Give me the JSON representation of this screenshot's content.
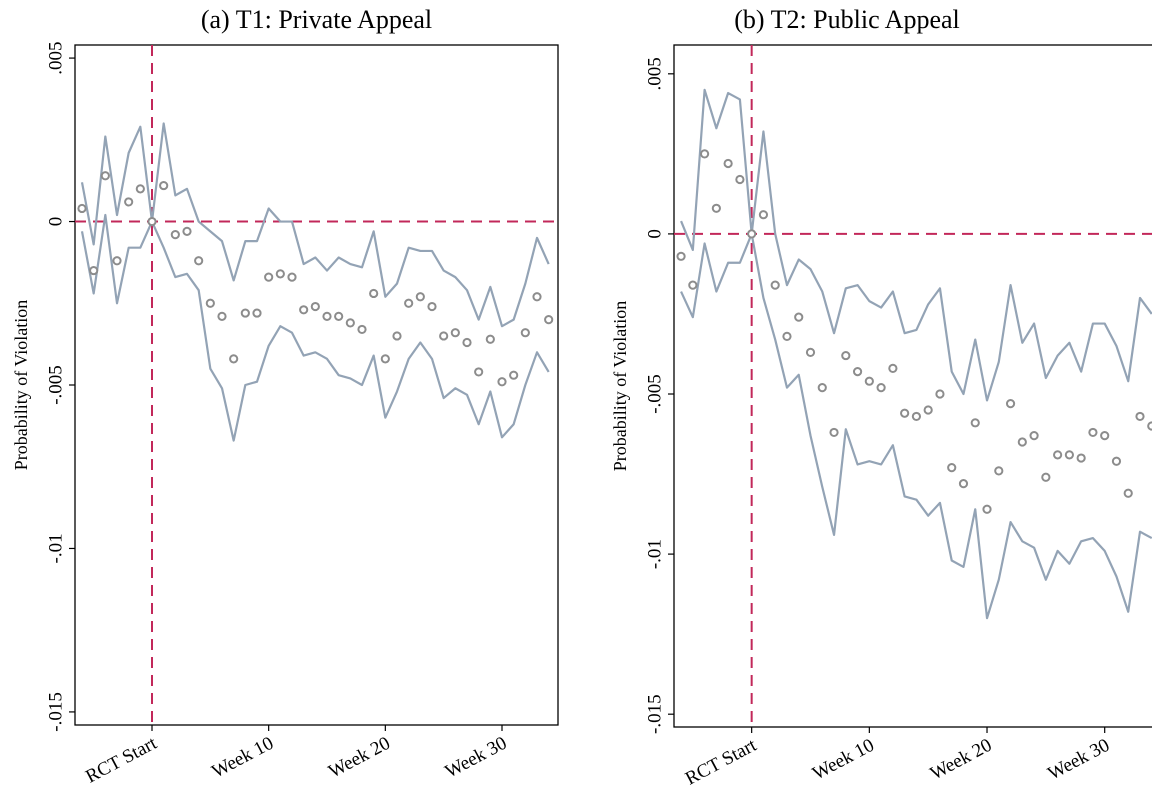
{
  "chart_data": [
    {
      "type": "scatter",
      "title": "(a) T1: Private Appeal",
      "ylabel": "Probability of Violation",
      "x": [
        -6,
        -5,
        -4,
        -3,
        -2,
        -1,
        0,
        1,
        2,
        3,
        4,
        5,
        6,
        7,
        8,
        9,
        10,
        11,
        12,
        13,
        14,
        15,
        16,
        17,
        18,
        19,
        20,
        21,
        22,
        23,
        24,
        25,
        26,
        27,
        28,
        29,
        30,
        31,
        32,
        33,
        34
      ],
      "series": [
        {
          "style": "markers",
          "color": "#8c8c8c",
          "values": [
            0.0004,
            -0.0015,
            0.0014,
            -0.0012,
            0.0006,
            0.001,
            0,
            0.0011,
            -0.0004,
            -0.0003,
            -0.0012,
            -0.0025,
            -0.0029,
            -0.0042,
            -0.0028,
            -0.0028,
            -0.0017,
            -0.0016,
            -0.0017,
            -0.0027,
            -0.0026,
            -0.0029,
            -0.0029,
            -0.0031,
            -0.0033,
            -0.0022,
            -0.0042,
            -0.0035,
            -0.0025,
            -0.0023,
            -0.0026,
            -0.0035,
            -0.0034,
            -0.0037,
            -0.0046,
            -0.0036,
            -0.0049,
            -0.0047,
            -0.0034,
            -0.0023,
            -0.003
          ]
        },
        {
          "style": "line",
          "color": "#93a3b5",
          "values": [
            0.0012,
            -0.0007,
            0.0026,
            0.0002,
            0.0021,
            0.0029,
            0,
            0.003,
            0.0008,
            0.001,
            0,
            -0.0003,
            -0.0006,
            -0.0018,
            -0.0006,
            -0.0006,
            0.0004,
            0,
            0,
            -0.0013,
            -0.0011,
            -0.0015,
            -0.0011,
            -0.0013,
            -0.0014,
            -0.0003,
            -0.0023,
            -0.0019,
            -0.0008,
            -0.0009,
            -0.0009,
            -0.0015,
            -0.0017,
            -0.0021,
            -0.003,
            -0.002,
            -0.0032,
            -0.003,
            -0.0019,
            -0.0005,
            -0.0013
          ]
        },
        {
          "style": "line",
          "color": "#93a3b5",
          "values": [
            -0.0003,
            -0.0022,
            0.0002,
            -0.0025,
            -0.0008,
            -0.0008,
            0,
            -0.0008,
            -0.0017,
            -0.0016,
            -0.0021,
            -0.0045,
            -0.0051,
            -0.0067,
            -0.005,
            -0.0049,
            -0.0038,
            -0.0032,
            -0.0034,
            -0.0041,
            -0.004,
            -0.0042,
            -0.0047,
            -0.0048,
            -0.005,
            -0.0041,
            -0.006,
            -0.0052,
            -0.0042,
            -0.0037,
            -0.0042,
            -0.0054,
            -0.0051,
            -0.0053,
            -0.0062,
            -0.0052,
            -0.0066,
            -0.0062,
            -0.005,
            -0.004,
            -0.0046
          ]
        }
      ],
      "xlim": [
        -6.6,
        34.8
      ],
      "xticks": [
        {
          "value": 0,
          "label": "RCT Start"
        },
        {
          "value": 10,
          "label": "Week 10"
        },
        {
          "value": 20,
          "label": "Week 20"
        },
        {
          "value": 30,
          "label": "Week 30"
        }
      ],
      "ylim": [
        -0.0154,
        0.0054
      ],
      "yticks": [
        {
          "value": 0.005,
          "label": ".005"
        },
        0,
        {
          "value": -0.005,
          "label": "-.005"
        },
        {
          "value": -0.01,
          "label": "-.01"
        },
        {
          "value": -0.015,
          "label": "-.015"
        }
      ],
      "reference_lines": {
        "x": 0,
        "y": 0,
        "color": "#c2285a"
      }
    },
    {
      "type": "scatter",
      "title": "(b) T2: Public Appeal",
      "ylabel": "Probability of Violation",
      "x": [
        -6,
        -5,
        -4,
        -3,
        -2,
        -1,
        0,
        1,
        2,
        3,
        4,
        5,
        6,
        7,
        8,
        9,
        10,
        11,
        12,
        13,
        14,
        15,
        16,
        17,
        18,
        19,
        20,
        21,
        22,
        23,
        24,
        25,
        26,
        27,
        28,
        29,
        30,
        31,
        32,
        33,
        34
      ],
      "series": [
        {
          "style": "markers",
          "color": "#8c8c8c",
          "values": [
            -0.0007,
            -0.0016,
            0.0025,
            0.0008,
            0.0022,
            0.0017,
            0,
            0.0006,
            -0.0016,
            -0.0032,
            -0.0026,
            -0.0037,
            -0.0048,
            -0.0062,
            -0.0038,
            -0.0043,
            -0.0046,
            -0.0048,
            -0.0042,
            -0.0056,
            -0.0057,
            -0.0055,
            -0.005,
            -0.0073,
            -0.0078,
            -0.0059,
            -0.0086,
            -0.0074,
            -0.0053,
            -0.0065,
            -0.0063,
            -0.0076,
            -0.0069,
            -0.0069,
            -0.007,
            -0.0062,
            -0.0063,
            -0.0071,
            -0.0081,
            -0.0057,
            -0.006
          ]
        },
        {
          "style": "line",
          "color": "#93a3b5",
          "values": [
            0.0004,
            -0.0005,
            0.0045,
            0.0033,
            0.0044,
            0.0042,
            0,
            0.0032,
            0,
            -0.0016,
            -0.0008,
            -0.0011,
            -0.0018,
            -0.0031,
            -0.0017,
            -0.0016,
            -0.0021,
            -0.0023,
            -0.0018,
            -0.0031,
            -0.003,
            -0.0022,
            -0.0017,
            -0.0043,
            -0.005,
            -0.0033,
            -0.0052,
            -0.004,
            -0.0016,
            -0.0034,
            -0.0028,
            -0.0045,
            -0.0038,
            -0.0034,
            -0.0043,
            -0.0028,
            -0.0028,
            -0.0035,
            -0.0046,
            -0.002,
            -0.0025
          ]
        },
        {
          "style": "line",
          "color": "#93a3b5",
          "values": [
            -0.0018,
            -0.0026,
            -0.0003,
            -0.0018,
            -0.0009,
            -0.0009,
            0,
            -0.002,
            -0.0033,
            -0.0048,
            -0.0044,
            -0.0063,
            -0.0079,
            -0.0094,
            -0.0061,
            -0.0072,
            -0.0071,
            -0.0072,
            -0.0066,
            -0.0082,
            -0.0083,
            -0.0088,
            -0.0084,
            -0.0102,
            -0.0104,
            -0.0086,
            -0.012,
            -0.0108,
            -0.009,
            -0.0096,
            -0.0098,
            -0.0108,
            -0.0099,
            -0.0103,
            -0.0096,
            -0.0095,
            -0.0099,
            -0.0107,
            -0.0118,
            -0.0093,
            -0.0095
          ]
        }
      ],
      "xlim": [
        -6.6,
        34.7
      ],
      "xticks": [
        {
          "value": 0,
          "label": "RCT Start"
        },
        {
          "value": 10,
          "label": "Week 10"
        },
        {
          "value": 20,
          "label": "Week 20"
        },
        {
          "value": 30,
          "label": "Week 30"
        }
      ],
      "ylim": [
        -0.0154,
        0.0059
      ],
      "yticks": [
        {
          "value": 0.005,
          "label": ".005"
        },
        0,
        {
          "value": -0.005,
          "label": "-.005"
        },
        {
          "value": -0.01,
          "label": "-.01"
        },
        {
          "value": -0.015,
          "label": "-.015"
        }
      ],
      "reference_lines": {
        "x": 0,
        "y": 0,
        "color": "#c2285a"
      }
    }
  ]
}
